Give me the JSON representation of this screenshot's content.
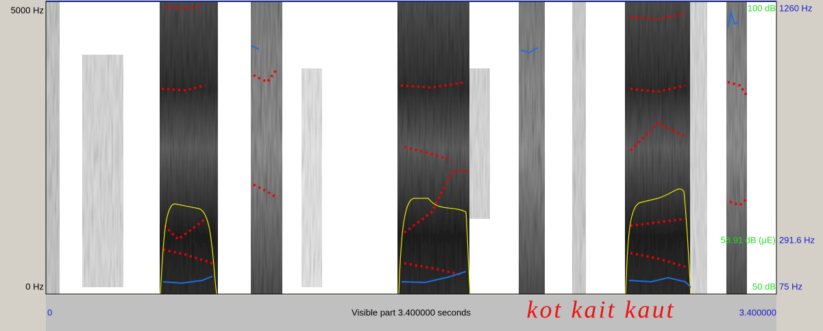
{
  "left_axis": {
    "top": "5000 Hz",
    "bottom": "0 Hz"
  },
  "right_axis": {
    "intensity_top": "100 dB",
    "pitch_top": "1260 Hz",
    "intensity_mid": "58.91 dB (μE)",
    "pitch_mid": "291.6 Hz",
    "intensity_bottom": "50 dB",
    "pitch_bottom": "75 Hz"
  },
  "time_bar": {
    "start": "0",
    "visible": "Visible part 3.400000 seconds",
    "end": "3.400000",
    "annotation": "kot kait kaut"
  }
}
